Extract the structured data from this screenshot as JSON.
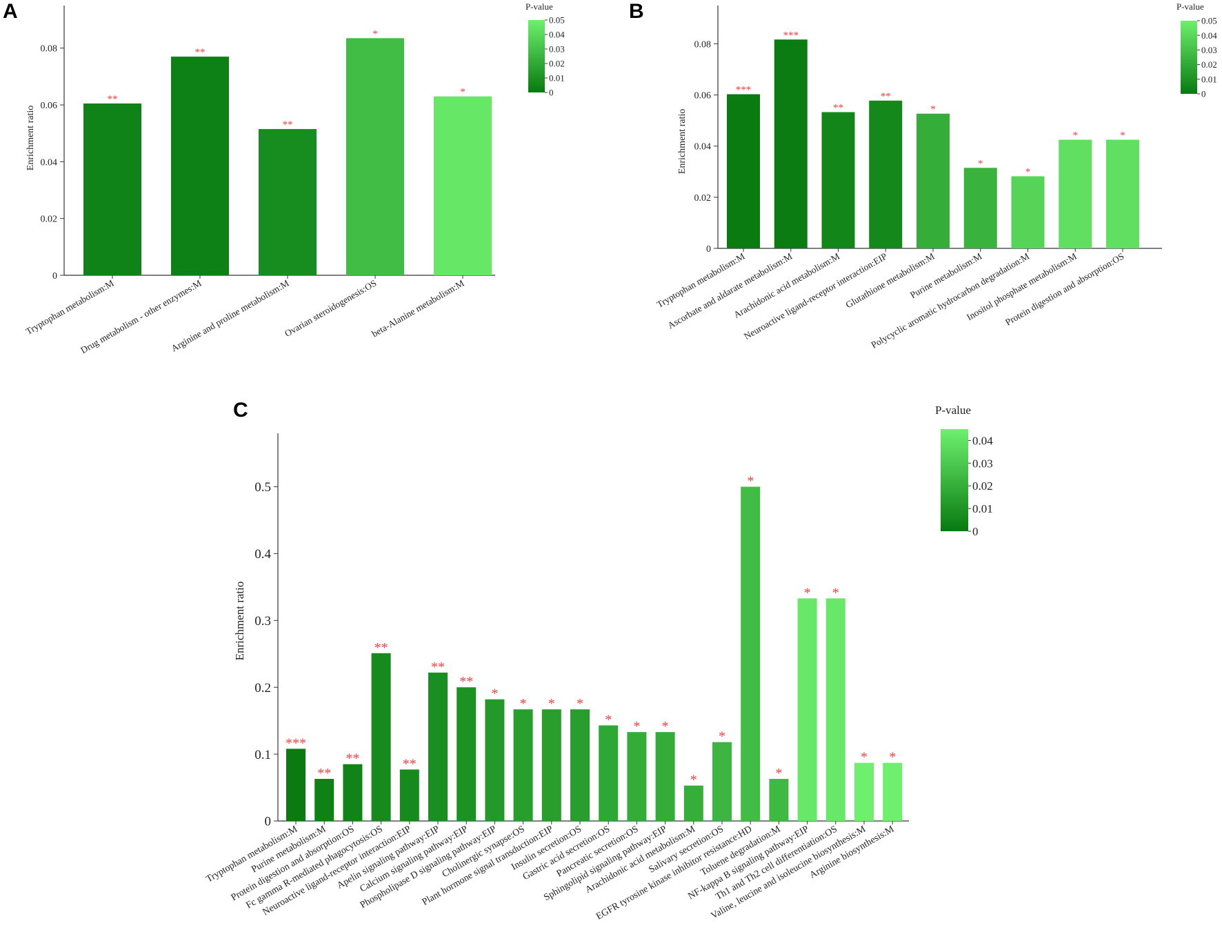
{
  "chart_data": [
    {
      "type": "bar",
      "panel": "A",
      "categories": [
        "Tryptophan metabolism:M",
        "Drug metabolism - other enzymes:M",
        "Arginine and proline metabolism:M",
        "Ovarian steroidogenesis:OS",
        "beta-Alanine metabolism:M"
      ],
      "values": [
        0.0605,
        0.077,
        0.0515,
        0.0835,
        0.063
      ],
      "pvalues": [
        0.004,
        0.003,
        0.008,
        0.028,
        0.046
      ],
      "significance": [
        "**",
        "**",
        "**",
        "*",
        "*"
      ],
      "ylabel": "Enrichment ratio",
      "ylim": [
        0,
        0.095
      ],
      "yticks": [
        0,
        0.02,
        0.04,
        0.06,
        0.08
      ],
      "ytick_labels": [
        "0",
        "0.02",
        "0.04",
        "0.06",
        "0.08"
      ],
      "colorbar": {
        "title": "P-value",
        "range": [
          0,
          0.05
        ],
        "ticks": [
          "0",
          "0.01",
          "0.02",
          "0.03",
          "0.04",
          "0.05"
        ]
      },
      "grid": false
    },
    {
      "type": "bar",
      "panel": "B",
      "categories": [
        "Tryptophan metabolism:M",
        "Ascorbate and aldarate metabolism:M",
        "Arachidonic acid metabolism:M",
        "Neuroactive ligand-receptor interaction:EIP",
        "Glutathione metabolism:M",
        "Purine metabolism:M",
        "Polycyclic aromatic hydrocarbon degradation:M",
        "Inositol phosphate metabolism:M",
        "Protein digestion and absorption:OS"
      ],
      "values": [
        0.0603,
        0.0817,
        0.0533,
        0.0578,
        0.0527,
        0.0315,
        0.0282,
        0.0425,
        0.0425
      ],
      "pvalues": [
        0.0005,
        0.0008,
        0.005,
        0.006,
        0.022,
        0.024,
        0.038,
        0.043,
        0.043
      ],
      "significance": [
        "***",
        "***",
        "**",
        "**",
        "*",
        "*",
        "*",
        "*",
        "*"
      ],
      "ylabel": "Enrichment ratio",
      "ylim": [
        0,
        0.095
      ],
      "yticks": [
        0,
        0.02,
        0.04,
        0.06,
        0.08
      ],
      "ytick_labels": [
        "0",
        "0.02",
        "0.04",
        "0.06",
        "0.08"
      ],
      "colorbar": {
        "title": "P-value",
        "range": [
          0,
          0.05
        ],
        "ticks": [
          "0",
          "0.01",
          "0.02",
          "0.03",
          "0.04",
          "0.05"
        ]
      },
      "grid": false
    },
    {
      "type": "bar",
      "panel": "C",
      "categories": [
        "Tryptophan metabolism:M",
        "Purine metabolism:M",
        "Protein digestion and absorption:OS",
        "Fc gamma R-mediated phagocytosis:OS",
        "Neuroactive ligand-receptor interaction:EIP",
        "Apelin signaling pathway:EIP",
        "Calcium signaling pathway:EIP",
        "Phospholipase D signaling pathway:EIP",
        "Cholinergic synapse:OS",
        "Plant hormone signal transduction:EIP",
        "Insulin secretion:OS",
        "Gastric acid secretion:OS",
        "Pancreatic secretion:OS",
        "Sphingolipid signaling pathway:EIP",
        "Arachidonic acid metabolism:M",
        "Salivary secretion:OS",
        "EGFR tyrosine kinase inhibitor resistance:HD",
        "Toluene degradation:M",
        "NF-kappa B signaling pathway:EIP",
        "Th1 and Th2 cell differentiation:OS",
        "Valine, leucine and isoleucine biosynthesis:M",
        "Arginine biosynthesis:M"
      ],
      "values": [
        0.108,
        0.063,
        0.085,
        0.251,
        0.077,
        0.222,
        0.2,
        0.182,
        0.167,
        0.167,
        0.167,
        0.143,
        0.133,
        0.133,
        0.053,
        0.118,
        0.5,
        0.063,
        0.333,
        0.333,
        0.087,
        0.087
      ],
      "pvalues": [
        0.0005,
        0.003,
        0.004,
        0.006,
        0.006,
        0.008,
        0.009,
        0.012,
        0.014,
        0.014,
        0.014,
        0.017,
        0.019,
        0.019,
        0.02,
        0.023,
        0.025,
        0.024,
        0.042,
        0.042,
        0.045,
        0.045
      ],
      "significance": [
        "***",
        "**",
        "**",
        "**",
        "**",
        "**",
        "**",
        "*",
        "*",
        "*",
        "*",
        "*",
        "*",
        "*",
        "*",
        "*",
        "*",
        "*",
        "*",
        "*",
        "*",
        "*"
      ],
      "ylabel": "Enrichment ratio",
      "ylim": [
        0,
        0.58
      ],
      "yticks": [
        0,
        0.1,
        0.2,
        0.3,
        0.4,
        0.5
      ],
      "ytick_labels": [
        "0",
        "0.1",
        "0.2",
        "0.3",
        "0.4",
        "0.5"
      ],
      "colorbar": {
        "title": "P-value",
        "range": [
          0,
          0.045
        ],
        "ticks": [
          "0",
          "0.01",
          "0.02",
          "0.03",
          "0.04"
        ]
      },
      "grid": false
    }
  ],
  "colors": {
    "pmin": "#087a10",
    "pmax": "#6ef06e",
    "star": "#ff3b3b",
    "axis": "#333333"
  }
}
